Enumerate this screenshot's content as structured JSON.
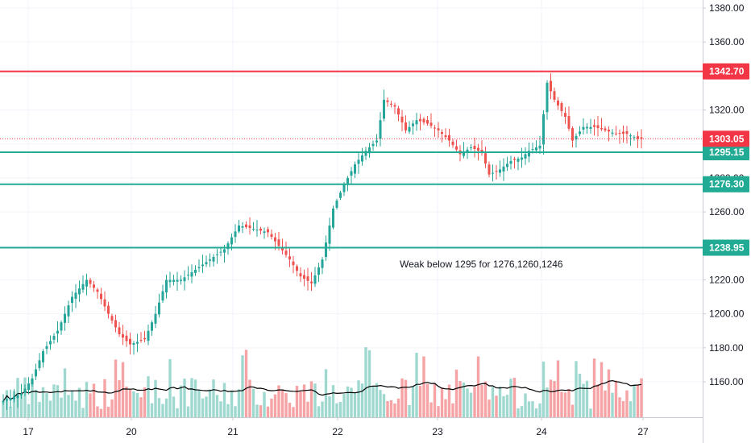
{
  "chart_data": {
    "type": "candlestick",
    "y_axis": {
      "ticks": [
        "1160.00",
        "1180.00",
        "1200.00",
        "1220.00",
        "1240.00",
        "1260.00",
        "1280.00",
        "1300.00",
        "1320.00",
        "1340.00",
        "1360.00",
        "1380.00"
      ],
      "ylim": [
        1142,
        1385
      ]
    },
    "x_axis": {
      "ticks": [
        {
          "label": "17",
          "day": 17
        },
        {
          "label": "20",
          "day": 20
        },
        {
          "label": "21",
          "day": 21
        },
        {
          "label": "22",
          "day": 22
        },
        {
          "label": "23",
          "day": 23
        },
        {
          "label": "24",
          "day": 24
        },
        {
          "label": "27",
          "day": 27
        }
      ]
    },
    "horizontal_levels": [
      {
        "value": 1342.7,
        "label": "1342.70",
        "color": "#f23645"
      },
      {
        "value": 1295.15,
        "label": "1295.15",
        "color": "#22ab94"
      },
      {
        "value": 1276.3,
        "label": "1276.30",
        "color": "#22ab94"
      },
      {
        "value": 1238.95,
        "label": "1238.95",
        "color": "#22ab94"
      }
    ],
    "last_price": {
      "value": 1303.05,
      "label": "1303.05",
      "color": "#f23645"
    },
    "annotation": "Weak below 1295 for 1276,1260,1246",
    "grid": true,
    "colors": {
      "up": "#26a69a",
      "down": "#ef5350",
      "up_volume": "#9ed8cf",
      "down_volume": "#f5a3a5",
      "ma": "#000000"
    },
    "anchors": [
      [
        0,
        1148
      ],
      [
        6,
        1153
      ],
      [
        9,
        1162
      ],
      [
        12,
        1178
      ],
      [
        16,
        1190
      ],
      [
        20,
        1210
      ],
      [
        24,
        1220
      ],
      [
        27,
        1213
      ],
      [
        30,
        1200
      ],
      [
        33,
        1188
      ],
      [
        36,
        1182
      ],
      [
        40,
        1185
      ],
      [
        43,
        1200
      ],
      [
        46,
        1220
      ],
      [
        50,
        1220
      ],
      [
        54,
        1226
      ],
      [
        58,
        1232
      ],
      [
        62,
        1238
      ],
      [
        66,
        1252
      ],
      [
        70,
        1250
      ],
      [
        74,
        1248
      ],
      [
        77,
        1240
      ],
      [
        80,
        1232
      ],
      [
        83,
        1222
      ],
      [
        86,
        1218
      ],
      [
        89,
        1232
      ],
      [
        92,
        1262
      ],
      [
        95,
        1276
      ],
      [
        98,
        1288
      ],
      [
        101,
        1296
      ],
      [
        104,
        1302
      ],
      [
        106,
        1326
      ],
      [
        109,
        1322
      ],
      [
        112,
        1308
      ],
      [
        115,
        1314
      ],
      [
        118,
        1312
      ],
      [
        121,
        1308
      ],
      [
        124,
        1302
      ],
      [
        127,
        1294
      ],
      [
        130,
        1298
      ],
      [
        133,
        1295
      ],
      [
        135,
        1282
      ],
      [
        138,
        1285
      ],
      [
        141,
        1290
      ],
      [
        144,
        1292
      ],
      [
        146,
        1296
      ],
      [
        149,
        1299
      ],
      [
        151,
        1336
      ],
      [
        153,
        1326
      ],
      [
        156,
        1316
      ],
      [
        158,
        1302
      ],
      [
        161,
        1310
      ],
      [
        164,
        1310
      ],
      [
        167,
        1308
      ],
      [
        170,
        1306
      ],
      [
        173,
        1306
      ],
      [
        176,
        1303
      ]
    ]
  }
}
